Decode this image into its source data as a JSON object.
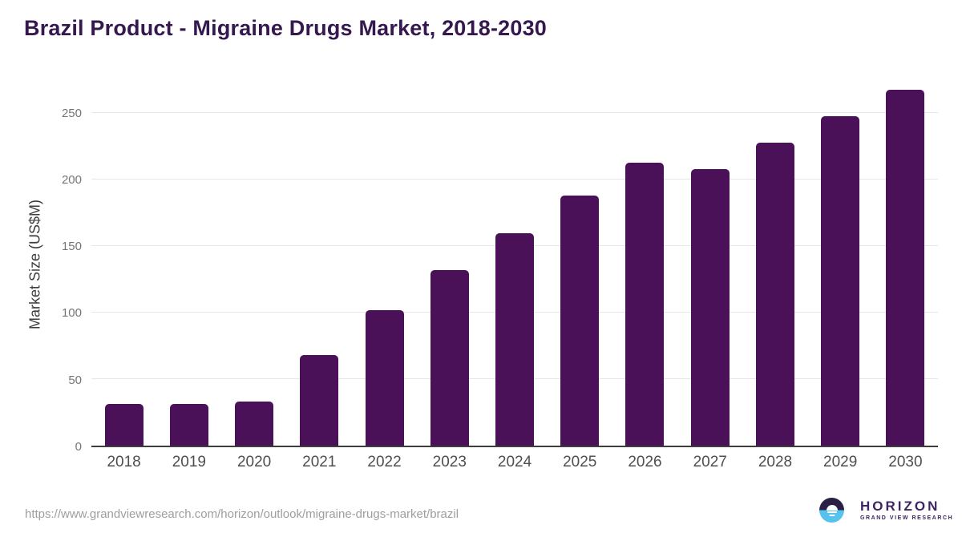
{
  "header": {
    "title": "Brazil Product - Migraine Drugs Market, 2018-2030"
  },
  "chart_data": {
    "type": "bar",
    "title": "Brazil Product - Migraine Drugs Market, 2018-2030",
    "categories": [
      "2018",
      "2019",
      "2020",
      "2021",
      "2022",
      "2023",
      "2024",
      "2025",
      "2026",
      "2027",
      "2028",
      "2029",
      "2030"
    ],
    "values": [
      31.5,
      31.5,
      33,
      68,
      102,
      132,
      160,
      188,
      213,
      208,
      228,
      248,
      268
    ],
    "xlabel": "",
    "ylabel": "Market Size (US$M)",
    "ylim": [
      0,
      275
    ],
    "yticks": [
      0,
      50,
      100,
      150,
      200,
      250
    ],
    "grid": true,
    "legend_position": "none",
    "bar_color": "#4a1158"
  },
  "footer": {
    "source_url": "https://www.grandviewresearch.com/horizon/outlook/migraine-drugs-market/brazil",
    "logo": {
      "brand": "HORIZON",
      "tagline": "GRAND VIEW RESEARCH"
    }
  },
  "colors": {
    "title": "#35184e",
    "bar": "#4a1158",
    "gridline": "#e6e6e6",
    "axis_line": "#3d3d3d",
    "y_tick": "#757575",
    "x_tick": "#4f4f4f",
    "y_axis_title": "#3d3d3d",
    "url": "#9e9e9e",
    "logo_dark": "#2b1f45",
    "logo_blue": "#56c3ec",
    "logo_text": "#3d2462"
  }
}
